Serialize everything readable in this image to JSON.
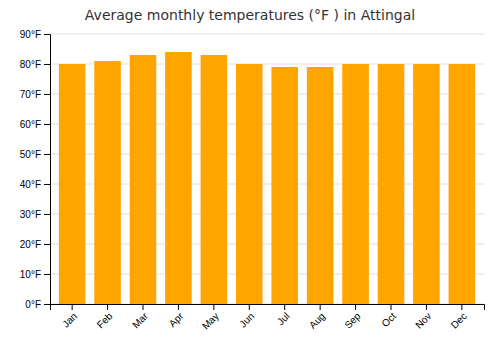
{
  "chart_data": {
    "type": "bar",
    "title": "Average monthly temperatures (°F ) in Attingal",
    "categories": [
      "Jan",
      "Feb",
      "Mar",
      "Apr",
      "May",
      "Jun",
      "Jul",
      "Aug",
      "Sep",
      "Oct",
      "Nov",
      "Dec"
    ],
    "values": [
      80,
      81,
      83,
      84,
      83,
      80,
      79,
      79,
      80,
      80,
      80,
      80
    ],
    "color": "#FFA500",
    "ylim": [
      0,
      90
    ],
    "yticks": [
      {
        "value": 0,
        "label": "0°F"
      },
      {
        "value": 10,
        "label": "10°F"
      },
      {
        "value": 20,
        "label": "20°F"
      },
      {
        "value": 30,
        "label": "30°F"
      },
      {
        "value": 40,
        "label": "40°F"
      },
      {
        "value": 50,
        "label": "50°F"
      },
      {
        "value": 60,
        "label": "60°F"
      },
      {
        "value": 70,
        "label": "70°F"
      },
      {
        "value": 80,
        "label": "80°F"
      },
      {
        "value": 90,
        "label": "90°F"
      }
    ],
    "grid": true
  }
}
